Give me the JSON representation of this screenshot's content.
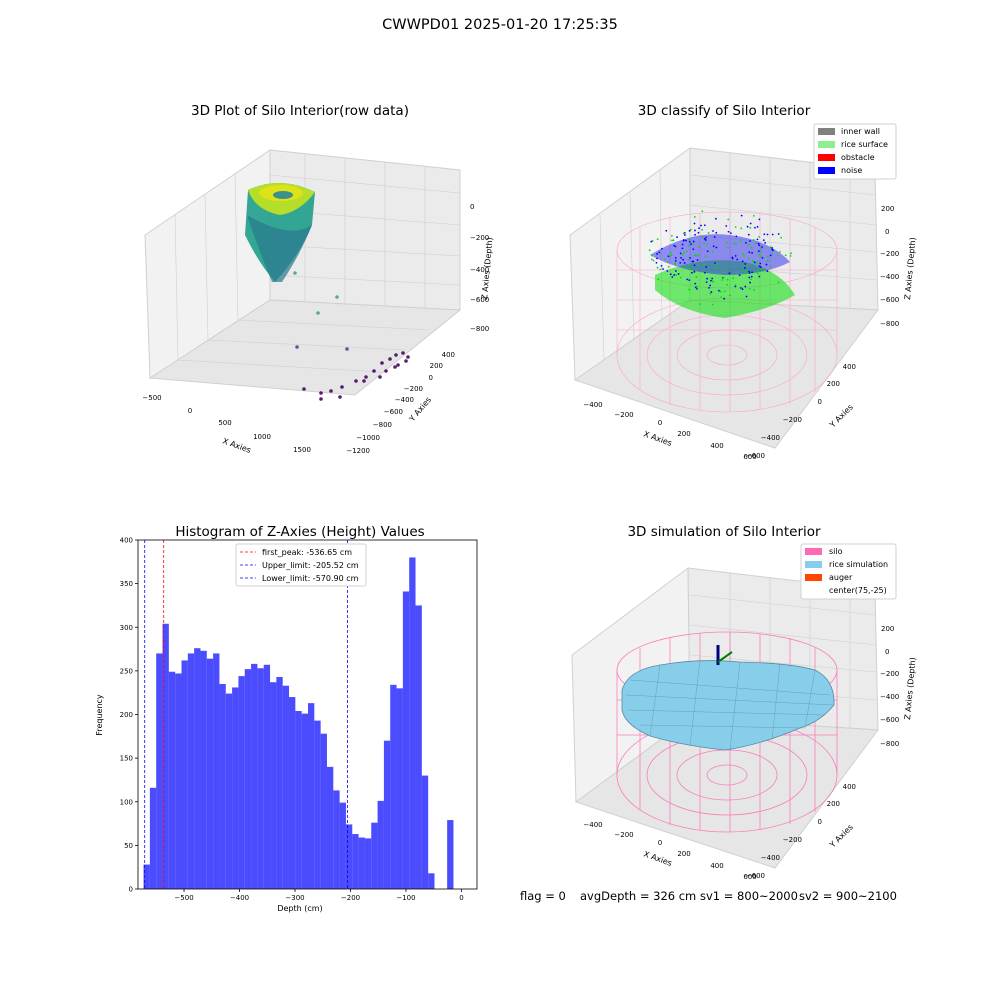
{
  "figure": {
    "suptitle": "CWWPD01 2025-01-20 17:25:35"
  },
  "panels": {
    "raw": {
      "title": "3D Plot of Silo Interior(row data)",
      "xlabel": "X Axies",
      "ylabel": "Y Axies",
      "zlabel": "Z Axies (Depth)",
      "x_ticks": [
        "-500",
        "0",
        "500",
        "1000",
        "1500"
      ],
      "y_ticks": [
        "-1200",
        "-1000",
        "-800",
        "-600",
        "-400",
        "-200",
        "0",
        "200",
        "400"
      ],
      "z_ticks": [
        "0",
        "-200",
        "-400",
        "-600",
        "-800"
      ]
    },
    "classify": {
      "title": "3D classify of Silo Interior",
      "xlabel": "X Axies",
      "ylabel": "Y Axies",
      "zlabel": "Z Axies (Depth)",
      "x_ticks": [
        "-400",
        "-200",
        "0",
        "200",
        "400",
        "600"
      ],
      "y_ticks": [
        "-600",
        "-400",
        "-200",
        "0",
        "200",
        "400"
      ],
      "z_ticks": [
        "200",
        "0",
        "-200",
        "-400",
        "-600",
        "-800"
      ],
      "legend": [
        {
          "label": "inner wall",
          "color": "#808080"
        },
        {
          "label": "rice surface",
          "color": "#90ee90"
        },
        {
          "label": "obstacle",
          "color": "#ff0000"
        },
        {
          "label": "noise",
          "color": "#0000ff"
        }
      ]
    },
    "simulation": {
      "title": "3D simulation of Silo Interior",
      "xlabel": "X Axies",
      "ylabel": "Y Axies",
      "zlabel": "Z Axies (Depth)",
      "x_ticks": [
        "-400",
        "-200",
        "0",
        "200",
        "400",
        "600"
      ],
      "y_ticks": [
        "-600",
        "-400",
        "-200",
        "0",
        "200",
        "400"
      ],
      "z_ticks": [
        "200",
        "0",
        "-200",
        "-400",
        "-600",
        "-800"
      ],
      "legend": [
        {
          "label": "silo",
          "color": "#ff69b4"
        },
        {
          "label": "rice simulation",
          "color": "#87ceeb"
        },
        {
          "label": "auger",
          "color": "#ff4500"
        },
        {
          "label": "center(75,-25)",
          "color": "#ffffff"
        }
      ]
    }
  },
  "footer": {
    "flag": "flag = 0",
    "avg_depth": "avgDepth = 326 cm",
    "sv1": "sv1 = 800~2000",
    "sv2": "sv2 = 900~2100"
  },
  "chart_data": {
    "type": "bar",
    "title": "Histogram of Z-Axies (Height) Values",
    "xlabel": "Depth (cm)",
    "ylabel": "Frequency",
    "xlim": [
      -583,
      28
    ],
    "ylim": [
      0,
      400
    ],
    "x_ticks": [
      -500,
      -400,
      -300,
      -200,
      -100,
      0
    ],
    "y_ticks": [
      0,
      50,
      100,
      150,
      200,
      250,
      300,
      350,
      400
    ],
    "bin_width": 11.4,
    "bin_start": -573,
    "values": [
      28,
      116,
      270,
      304,
      249,
      247,
      262,
      270,
      276,
      273,
      264,
      270,
      235,
      224,
      231,
      244,
      252,
      258,
      253,
      257,
      237,
      243,
      233,
      220,
      204,
      201,
      213,
      193,
      178,
      140,
      113,
      99,
      74,
      63,
      59,
      58,
      76,
      101,
      170,
      234,
      230,
      341,
      380,
      325,
      130,
      18,
      0,
      0,
      79
    ],
    "bar_color": "#0000ff",
    "bar_alpha": 0.7,
    "vlines": [
      {
        "label": "first_peak: -536.65 cm",
        "x": -536.65,
        "color": "#ff0000"
      },
      {
        "label": "Upper_limit: -205.52 cm",
        "x": -205.52,
        "color": "#0000ff"
      },
      {
        "label": "Lower_limit: -570.90 cm",
        "x": -570.9,
        "color": "#0000ff"
      }
    ],
    "legend_position": "top-center"
  }
}
